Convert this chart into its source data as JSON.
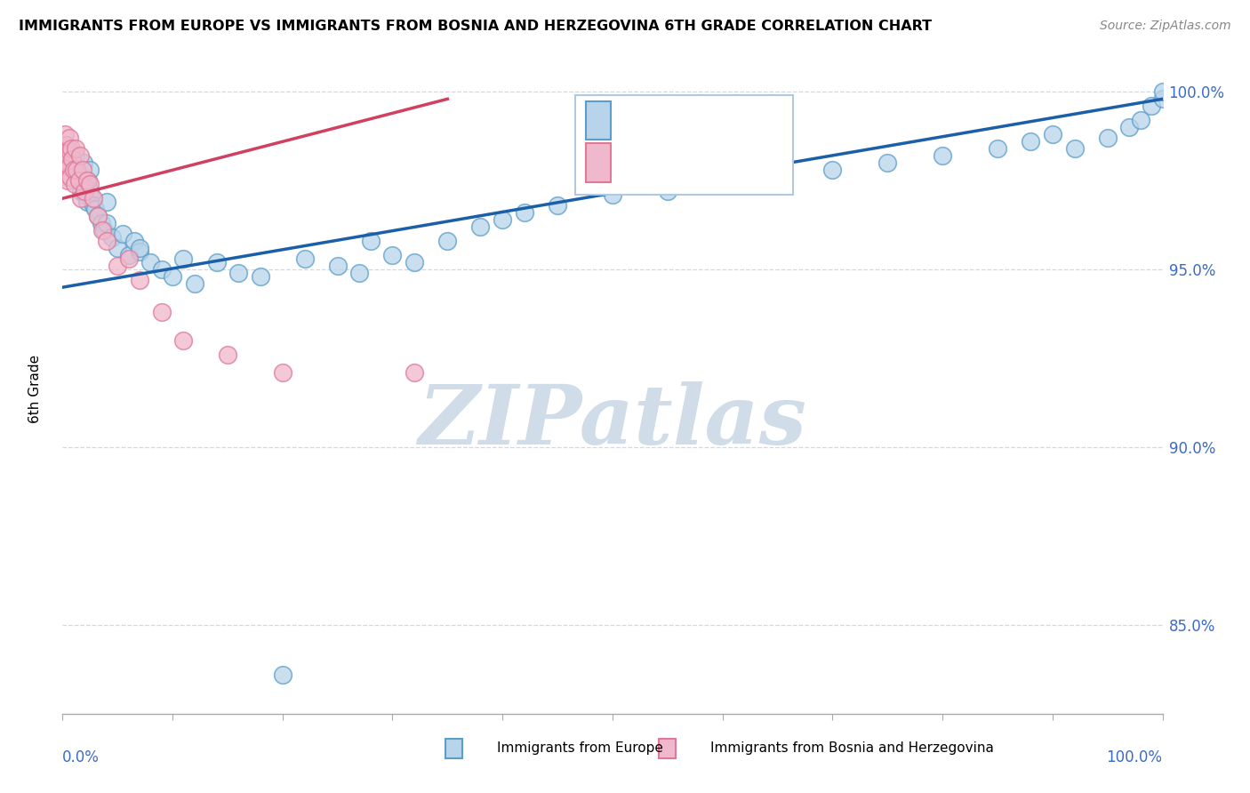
{
  "title": "IMMIGRANTS FROM EUROPE VS IMMIGRANTS FROM BOSNIA AND HERZEGOVINA 6TH GRADE CORRELATION CHART",
  "source": "Source: ZipAtlas.com",
  "ylabel": "6th Grade",
  "y_tick_vals": [
    0.85,
    0.9,
    0.95,
    1.0
  ],
  "y_tick_labels": [
    "85.0%",
    "90.0%",
    "95.0%",
    "100.0%"
  ],
  "xlim": [
    0.0,
    1.0
  ],
  "ylim": [
    0.825,
    1.008
  ],
  "blue_face": "#b8d4ea",
  "blue_edge": "#5b9ec9",
  "pink_face": "#f0b8cc",
  "pink_edge": "#e07898",
  "trendline_blue": "#1a5fa8",
  "trendline_pink": "#d04060",
  "legend_r_color": "#2060a0",
  "watermark_color": "#d0dce8",
  "blue_x": [
    0.004,
    0.005,
    0.006,
    0.007,
    0.008,
    0.009,
    0.01,
    0.011,
    0.012,
    0.013,
    0.014,
    0.015,
    0.016,
    0.017,
    0.018,
    0.019,
    0.02,
    0.021,
    0.022,
    0.023,
    0.025,
    0.027,
    0.028,
    0.03,
    0.032,
    0.035,
    0.038,
    0.04,
    0.045,
    0.05,
    0.055,
    0.06,
    0.065,
    0.07,
    0.08,
    0.09,
    0.1,
    0.11,
    0.12,
    0.14,
    0.16,
    0.18,
    0.2,
    0.22,
    0.25,
    0.27,
    0.3,
    0.32,
    0.35,
    0.38,
    0.4,
    0.42,
    0.45,
    0.5,
    0.55,
    0.6,
    0.65,
    0.7,
    0.75,
    0.8,
    0.85,
    0.88,
    0.9,
    0.92,
    0.95,
    0.97,
    0.98,
    0.99,
    1.0,
    1.0,
    0.002,
    0.003,
    0.006,
    0.008,
    0.015,
    0.02,
    0.025,
    0.04,
    0.07,
    0.28
  ],
  "blue_y": [
    0.98,
    0.984,
    0.979,
    0.983,
    0.977,
    0.981,
    0.976,
    0.978,
    0.982,
    0.979,
    0.975,
    0.977,
    0.974,
    0.972,
    0.976,
    0.98,
    0.974,
    0.971,
    0.969,
    0.975,
    0.972,
    0.97,
    0.968,
    0.967,
    0.965,
    0.963,
    0.961,
    0.963,
    0.959,
    0.956,
    0.96,
    0.954,
    0.958,
    0.955,
    0.952,
    0.95,
    0.948,
    0.953,
    0.946,
    0.952,
    0.949,
    0.948,
    0.836,
    0.953,
    0.951,
    0.949,
    0.954,
    0.952,
    0.958,
    0.962,
    0.964,
    0.966,
    0.968,
    0.971,
    0.972,
    0.974,
    0.976,
    0.978,
    0.98,
    0.982,
    0.984,
    0.986,
    0.988,
    0.984,
    0.987,
    0.99,
    0.992,
    0.996,
    0.998,
    1.0,
    0.985,
    0.982,
    0.978,
    0.981,
    0.976,
    0.973,
    0.978,
    0.969,
    0.956,
    0.958
  ],
  "pink_x": [
    0.001,
    0.001,
    0.002,
    0.002,
    0.003,
    0.003,
    0.004,
    0.004,
    0.005,
    0.005,
    0.006,
    0.006,
    0.007,
    0.007,
    0.008,
    0.009,
    0.01,
    0.011,
    0.012,
    0.013,
    0.015,
    0.016,
    0.017,
    0.018,
    0.02,
    0.022,
    0.025,
    0.028,
    0.032,
    0.036,
    0.04,
    0.05,
    0.06,
    0.07,
    0.09,
    0.11,
    0.15,
    0.2,
    0.32
  ],
  "pink_y": [
    0.984,
    0.978,
    0.988,
    0.981,
    0.985,
    0.979,
    0.983,
    0.976,
    0.982,
    0.975,
    0.987,
    0.979,
    0.983,
    0.976,
    0.984,
    0.981,
    0.978,
    0.974,
    0.984,
    0.978,
    0.975,
    0.982,
    0.97,
    0.978,
    0.972,
    0.975,
    0.974,
    0.97,
    0.965,
    0.961,
    0.958,
    0.951,
    0.953,
    0.947,
    0.938,
    0.93,
    0.926,
    0.921,
    0.921
  ],
  "blue_trend_x0": 0.0,
  "blue_trend_y0": 0.945,
  "blue_trend_x1": 1.0,
  "blue_trend_y1": 0.998,
  "pink_trend_x0": 0.0,
  "pink_trend_y0": 0.97,
  "pink_trend_x1": 0.35,
  "pink_trend_y1": 0.998
}
